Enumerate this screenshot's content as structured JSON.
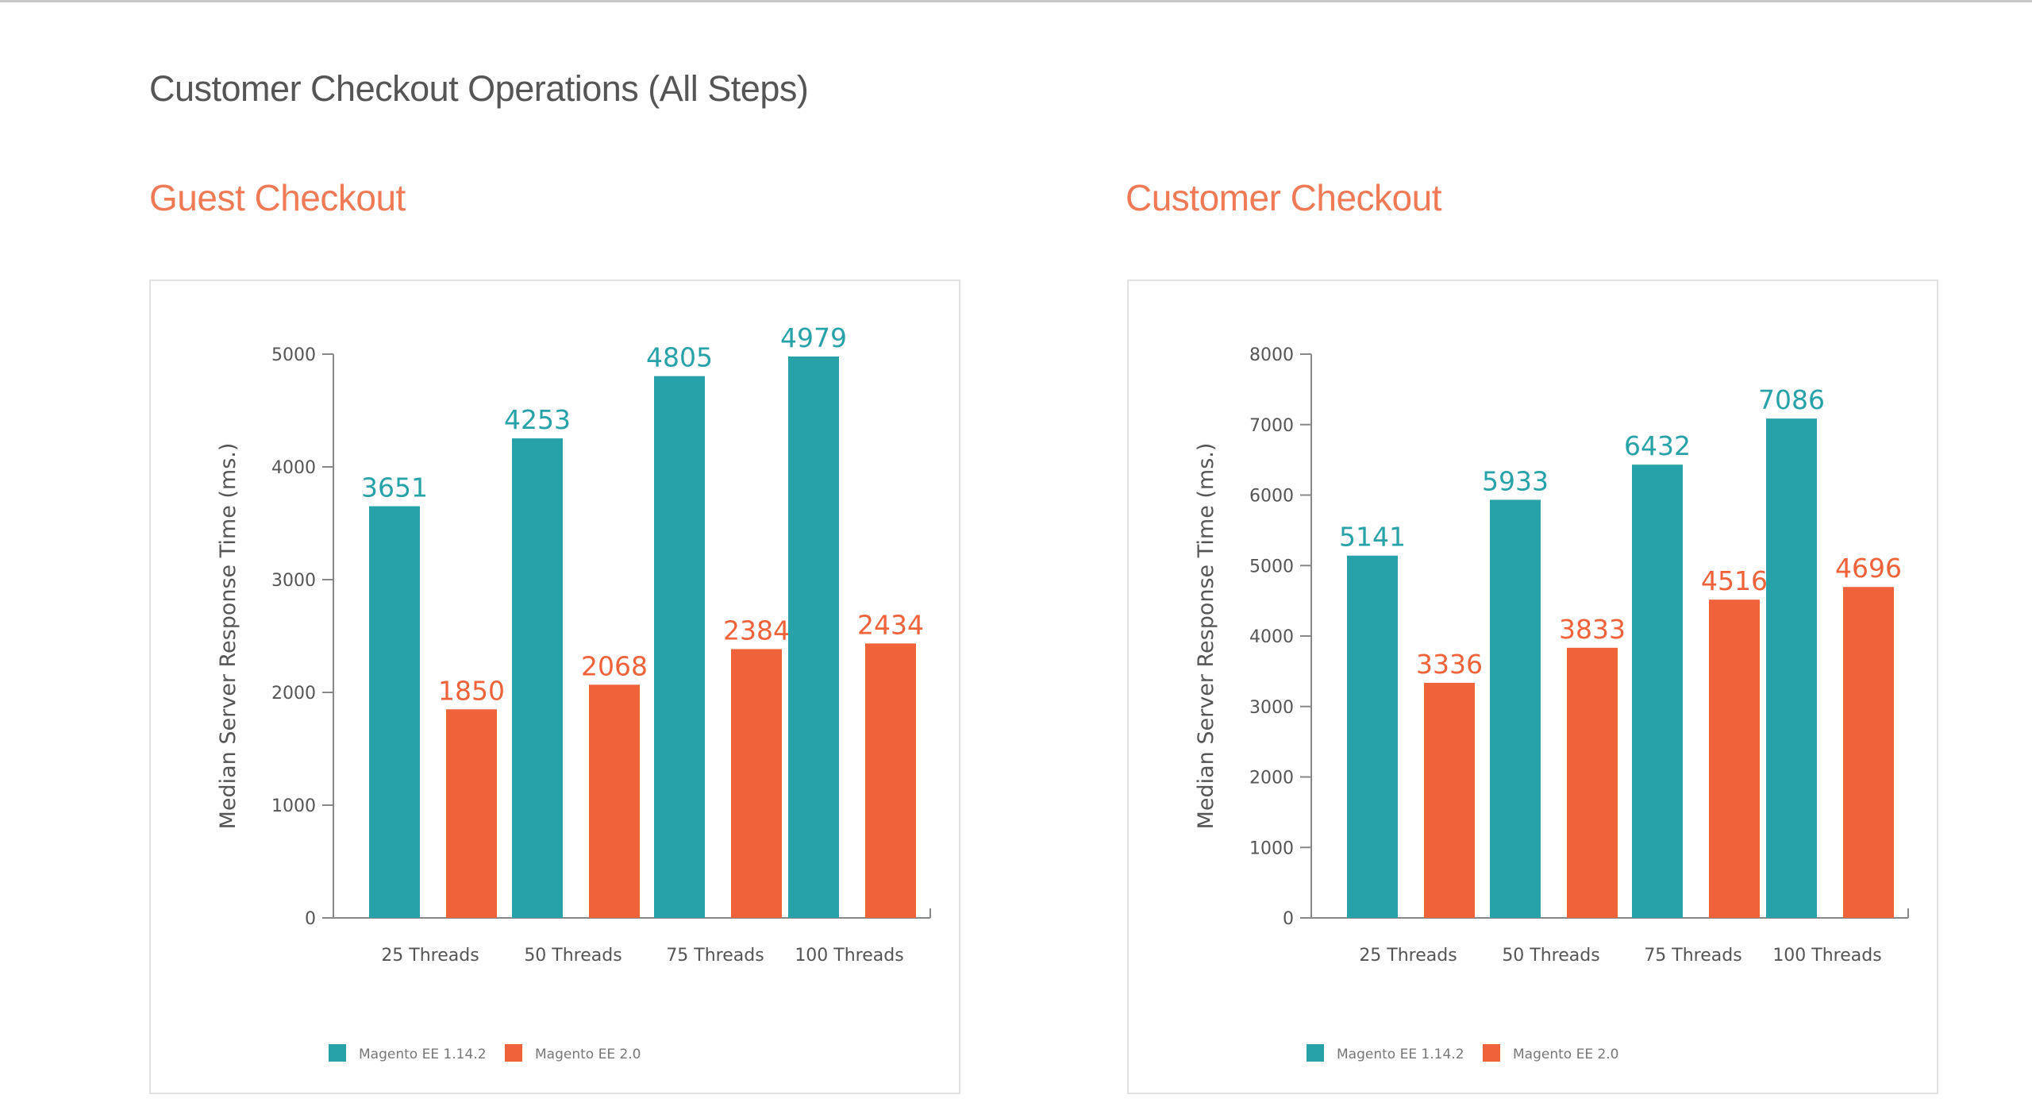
{
  "page_title": "Customer Checkout Operations (All Steps)",
  "colors": {
    "series1": "#27a2a9",
    "series2": "#ef623a",
    "chart_title": "#f07a55"
  },
  "chart_data": [
    {
      "type": "bar",
      "title": "Guest Checkout",
      "ylabel": "Median Server Response Time (ms.)",
      "xlabel": "",
      "categories": [
        "25 Threads",
        "50 Threads",
        "75 Threads",
        "100 Threads"
      ],
      "ylim": [
        0,
        5000
      ],
      "yticks": [
        0,
        1000,
        2000,
        3000,
        4000,
        5000
      ],
      "grid": false,
      "legend": "bottom",
      "series": [
        {
          "name": "Magento EE 1.14.2",
          "values": [
            3651,
            4253,
            4805,
            4979
          ]
        },
        {
          "name": "Magento EE 2.0",
          "values": [
            1850,
            2068,
            2384,
            2434
          ]
        }
      ]
    },
    {
      "type": "bar",
      "title": "Customer Checkout",
      "ylabel": "Median Server Response Time (ms.)",
      "xlabel": "",
      "categories": [
        "25 Threads",
        "50 Threads",
        "75 Threads",
        "100 Threads"
      ],
      "ylim": [
        0,
        8000
      ],
      "yticks": [
        0,
        1000,
        2000,
        3000,
        4000,
        5000,
        6000,
        7000,
        8000
      ],
      "grid": false,
      "legend": "bottom",
      "series": [
        {
          "name": "Magento EE 1.14.2",
          "values": [
            5141,
            5933,
            6432,
            7086
          ]
        },
        {
          "name": "Magento EE 2.0",
          "values": [
            3336,
            3833,
            4516,
            4696
          ]
        }
      ]
    }
  ]
}
